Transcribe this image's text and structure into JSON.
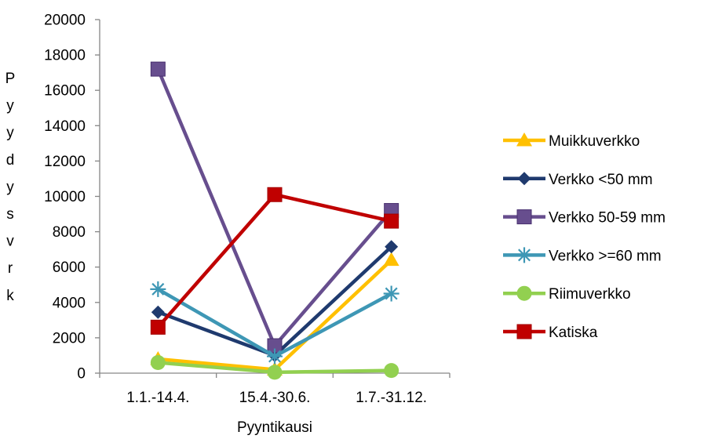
{
  "chart_data": {
    "type": "line",
    "categories": [
      "1.1.-14.4.",
      "15.4.-30.6.",
      "1.7.-31.12."
    ],
    "xlabel": "Pyyntikausi",
    "ylabel_letters": [
      "P",
      "y",
      "y",
      "d",
      "y",
      "s",
      "v",
      "r",
      "k"
    ],
    "ylim": [
      0,
      20000
    ],
    "yticks": [
      0,
      2000,
      4000,
      6000,
      8000,
      10000,
      12000,
      14000,
      16000,
      18000,
      20000
    ],
    "grid": false,
    "legend_position": "right",
    "series": [
      {
        "name": "Muikkuverkko",
        "values": [
          800,
          200,
          6400
        ],
        "color": "#FFC000",
        "marker": "triangle"
      },
      {
        "name": "Verkko <50 mm",
        "values": [
          3450,
          1000,
          7150
        ],
        "color": "#1F3A6E",
        "marker": "diamond"
      },
      {
        "name": "Verkko 50-59 mm",
        "values": [
          17200,
          1550,
          9200
        ],
        "color": "#674E8E",
        "marker": "square"
      },
      {
        "name": "Verkko >=60 mm",
        "values": [
          4750,
          950,
          4500
        ],
        "color": "#3E97B5",
        "marker": "star"
      },
      {
        "name": "Riimuverkko",
        "values": [
          600,
          50,
          150
        ],
        "color": "#92D050",
        "marker": "circle"
      },
      {
        "name": "Katiska",
        "values": [
          2600,
          10100,
          8600
        ],
        "color": "#C00000",
        "marker": "square"
      }
    ]
  }
}
